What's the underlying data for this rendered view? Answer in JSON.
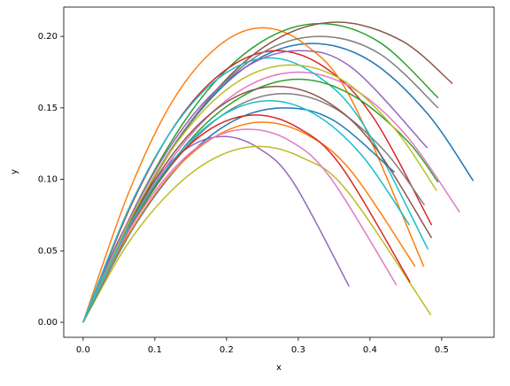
{
  "chart_data": {
    "type": "line",
    "xlabel": "x",
    "ylabel": "y",
    "xlim": [
      -0.027,
      0.573
    ],
    "ylim": [
      -0.0105,
      0.2205
    ],
    "xticks": [
      {
        "value": 0,
        "label": "0.0"
      },
      0.1,
      0.2,
      0.3,
      0.4,
      0.5
    ],
    "yticks": [
      {
        "value": 0,
        "label": "0.00"
      },
      {
        "value": 0.05,
        "label": "0.05"
      },
      {
        "value": 0.1,
        "label": "0.10"
      },
      {
        "value": 0.15,
        "label": "0.15"
      },
      {
        "value": 0.2,
        "label": "0.20"
      }
    ],
    "series": [
      {
        "color": "#1f77b4",
        "x": [
          0,
          0.08,
          0.16,
          0.24,
          0.32,
          0.4,
          0.48,
          0.544
        ],
        "values": [
          0,
          0.085,
          0.146,
          0.183,
          0.195,
          0.183,
          0.146,
          0.099
        ]
      },
      {
        "color": "#ff7f0e",
        "x": [
          0,
          0.063,
          0.125,
          0.188,
          0.25,
          0.313,
          0.375,
          0.475
        ],
        "values": [
          0,
          0.09,
          0.155,
          0.193,
          0.206,
          0.193,
          0.155,
          0.039
        ]
      },
      {
        "color": "#2ca02c",
        "x": [
          0,
          0.083,
          0.165,
          0.248,
          0.33,
          0.413,
          0.495
        ],
        "values": [
          0,
          0.091,
          0.157,
          0.196,
          0.209,
          0.196,
          0.157
        ]
      },
      {
        "color": "#d62728",
        "x": [
          0,
          0.068,
          0.135,
          0.203,
          0.27,
          0.338,
          0.405,
          0.486
        ],
        "values": [
          0,
          0.083,
          0.143,
          0.178,
          0.19,
          0.178,
          0.143,
          0.068
        ]
      },
      {
        "color": "#9467bd",
        "x": [
          0,
          0.049,
          0.098,
          0.146,
          0.195,
          0.244,
          0.293,
          0.371
        ],
        "values": [
          0,
          0.057,
          0.098,
          0.122,
          0.13,
          0.122,
          0.098,
          0.025
        ]
      },
      {
        "color": "#8c564b",
        "x": [
          0,
          0.089,
          0.178,
          0.266,
          0.355,
          0.444,
          0.515
        ],
        "values": [
          0,
          0.092,
          0.158,
          0.197,
          0.21,
          0.197,
          0.167
        ]
      },
      {
        "color": "#e377c2",
        "x": [
          0,
          0.075,
          0.15,
          0.225,
          0.3,
          0.375,
          0.45,
          0.525
        ],
        "values": [
          0,
          0.077,
          0.131,
          0.164,
          0.175,
          0.164,
          0.131,
          0.077
        ]
      },
      {
        "color": "#7f7f7f",
        "x": [
          0,
          0.07,
          0.14,
          0.21,
          0.28,
          0.35,
          0.42,
          0.476
        ],
        "values": [
          0,
          0.07,
          0.12,
          0.15,
          0.16,
          0.15,
          0.12,
          0.082
        ]
      },
      {
        "color": "#bcbd22",
        "x": [
          0,
          0.061,
          0.123,
          0.184,
          0.245,
          0.306,
          0.368,
          0.485
        ],
        "values": [
          0,
          0.054,
          0.092,
          0.115,
          0.123,
          0.115,
          0.092,
          0.005
        ]
      },
      {
        "color": "#17becf",
        "x": [
          0,
          0.065,
          0.13,
          0.195,
          0.26,
          0.325,
          0.39,
          0.481
        ],
        "values": [
          0,
          0.081,
          0.139,
          0.173,
          0.185,
          0.173,
          0.139,
          0.051
        ]
      },
      {
        "color": "#1f77b4",
        "x": [
          0,
          0.07,
          0.14,
          0.21,
          0.28,
          0.35,
          0.434
        ],
        "values": [
          0,
          0.066,
          0.113,
          0.141,
          0.15,
          0.141,
          0.105
        ]
      },
      {
        "color": "#ff7f0e",
        "x": [
          0,
          0.063,
          0.125,
          0.188,
          0.25,
          0.313,
          0.375,
          0.463
        ],
        "values": [
          0,
          0.061,
          0.105,
          0.131,
          0.14,
          0.131,
          0.105,
          0.039
        ]
      },
      {
        "color": "#2ca02c",
        "x": [
          0,
          0.075,
          0.15,
          0.225,
          0.3,
          0.375,
          0.45,
          0.495
        ],
        "values": [
          0,
          0.074,
          0.128,
          0.159,
          0.17,
          0.159,
          0.128,
          0.098
        ]
      },
      {
        "color": "#d62728",
        "x": [
          0,
          0.06,
          0.12,
          0.18,
          0.24,
          0.3,
          0.36,
          0.456
        ],
        "values": [
          0,
          0.063,
          0.109,
          0.136,
          0.145,
          0.136,
          0.109,
          0.028
        ]
      },
      {
        "color": "#9467bd",
        "x": [
          0,
          0.075,
          0.15,
          0.225,
          0.3,
          0.375,
          0.48
        ],
        "values": [
          0,
          0.083,
          0.143,
          0.178,
          0.19,
          0.178,
          0.122
        ]
      },
      {
        "color": "#8c564b",
        "x": [
          0,
          0.068,
          0.135,
          0.203,
          0.27,
          0.338,
          0.405,
          0.486
        ],
        "values": [
          0,
          0.072,
          0.124,
          0.155,
          0.165,
          0.155,
          0.124,
          0.059
        ]
      },
      {
        "color": "#e377c2",
        "x": [
          0,
          0.058,
          0.115,
          0.173,
          0.23,
          0.288,
          0.345,
          0.437
        ],
        "values": [
          0,
          0.059,
          0.101,
          0.127,
          0.135,
          0.127,
          0.101,
          0.026
        ]
      },
      {
        "color": "#7f7f7f",
        "x": [
          0,
          0.083,
          0.165,
          0.248,
          0.33,
          0.413,
          0.495
        ],
        "values": [
          0,
          0.088,
          0.15,
          0.188,
          0.2,
          0.188,
          0.15
        ]
      },
      {
        "color": "#bcbd22",
        "x": [
          0,
          0.073,
          0.145,
          0.218,
          0.29,
          0.363,
          0.435,
          0.493
        ],
        "values": [
          0,
          0.079,
          0.135,
          0.169,
          0.18,
          0.169,
          0.135,
          0.092
        ]
      },
      {
        "color": "#17becf",
        "x": [
          0,
          0.065,
          0.13,
          0.195,
          0.26,
          0.325,
          0.39,
          0.455
        ],
        "values": [
          0,
          0.068,
          0.116,
          0.145,
          0.155,
          0.145,
          0.116,
          0.068
        ]
      }
    ]
  }
}
